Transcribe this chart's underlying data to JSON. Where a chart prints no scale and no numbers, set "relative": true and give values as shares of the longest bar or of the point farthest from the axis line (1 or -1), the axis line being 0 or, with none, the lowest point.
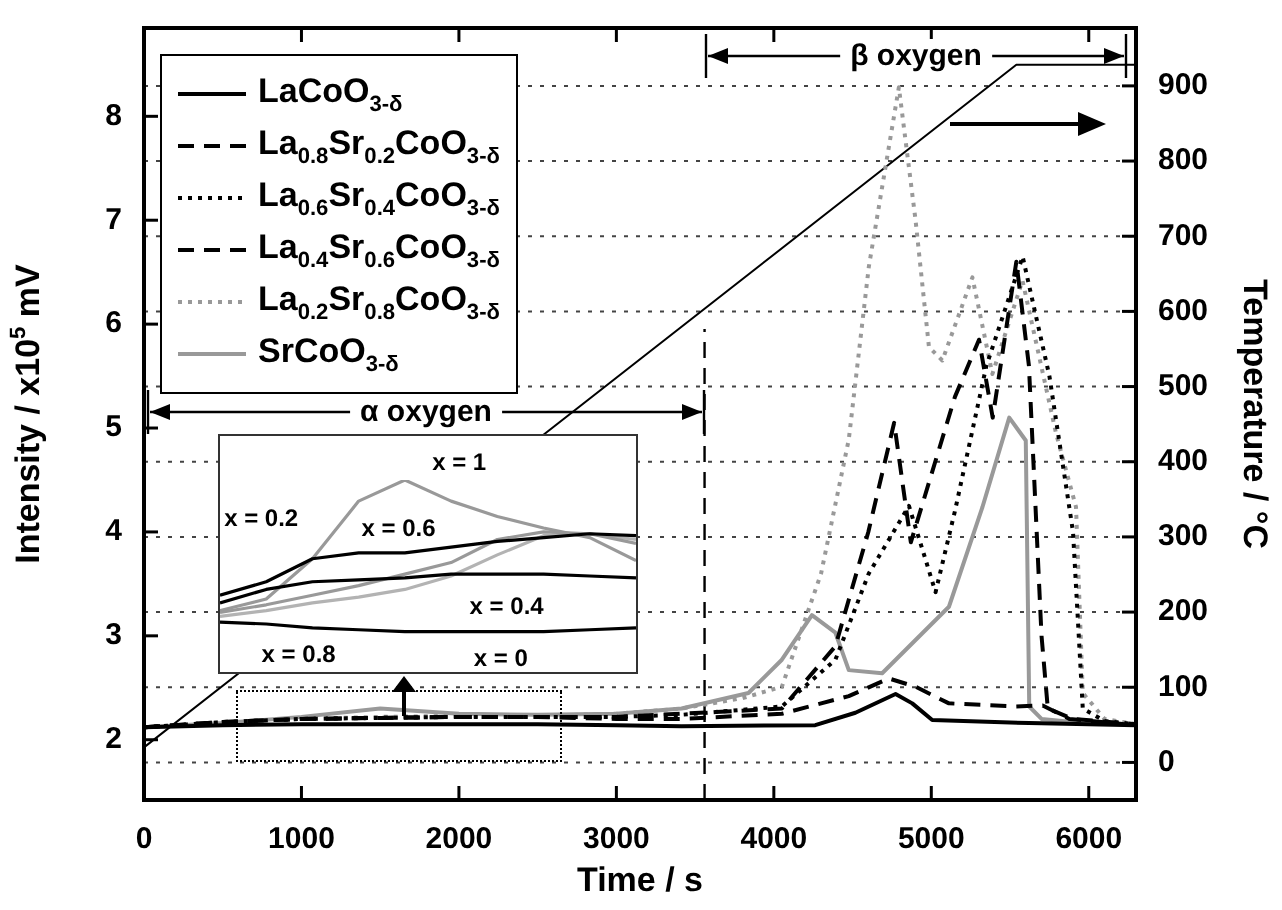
{
  "chart_data": [
    {
      "type": "line",
      "xlabel": "Time / s",
      "ylabel": "Intensity / x10$^{5}$ mV",
      "y2label": "Temperature / °C",
      "xlim": [
        0,
        6300
      ],
      "xticks": [
        0,
        1000,
        2000,
        3000,
        4000,
        5000,
        6000
      ],
      "ylim": [
        1.42,
        8.85
      ],
      "yticks": [
        2,
        3,
        4,
        5,
        6,
        7,
        8
      ],
      "y2lim": [
        -50,
        977
      ],
      "y2ticks": [
        0,
        100,
        200,
        300,
        400,
        500,
        600,
        700,
        800,
        900
      ],
      "grid": "y",
      "legend": "top left",
      "ref_lines": [
        {
          "axis": "x",
          "value": 3560,
          "line_style": "dashed",
          "color": "#000000"
        }
      ],
      "annotations": [
        "α oxygen",
        "β oxygen"
      ],
      "series": [
        {
          "name": "LaCoO$_{3-δ}$",
          "color": "#000000",
          "line_style": "solid",
          "x": [
            0,
            500,
            1000,
            1500,
            2000,
            2500,
            3000,
            3414,
            4263,
            4518,
            4773,
            4879,
            5006,
            5622,
            6300
          ],
          "values": [
            2.12,
            2.14,
            2.15,
            2.15,
            2.15,
            2.15,
            2.14,
            2.13,
            2.14,
            2.26,
            2.44,
            2.35,
            2.19,
            2.16,
            2.14
          ]
        },
        {
          "name": "La$_{0.8}$Sr$_{0.2}$CoO$_{3-δ}$",
          "color": "#000000",
          "line_style": "dashed",
          "x": [
            0,
            500,
            1000,
            1500,
            2000,
            2500,
            3000,
            3414,
            4051,
            4476,
            4730,
            4900,
            5112,
            5537,
            5707,
            5877,
            6300
          ],
          "values": [
            2.12,
            2.17,
            2.2,
            2.21,
            2.22,
            2.22,
            2.2,
            2.2,
            2.25,
            2.42,
            2.59,
            2.51,
            2.35,
            2.32,
            2.33,
            2.2,
            2.14
          ]
        },
        {
          "name": "La$_{0.6}$Sr$_{0.4}$CoO$_{3-δ}$",
          "color": "#000000",
          "line_style": "dotted",
          "x": [
            0,
            500,
            1000,
            1500,
            2000,
            2500,
            3000,
            3414,
            4051,
            4391,
            4603,
            4858,
            4950,
            5027,
            5150,
            5350,
            5580,
            5750,
            5900,
            5962,
            6100,
            6300
          ],
          "values": [
            2.12,
            2.17,
            2.2,
            2.21,
            2.22,
            2.22,
            2.22,
            2.24,
            2.32,
            2.77,
            3.6,
            4.25,
            3.8,
            3.42,
            4.2,
            5.6,
            6.65,
            5.5,
            4.0,
            2.3,
            2.18,
            2.15
          ]
        },
        {
          "name": "La$_{0.4}$Sr$_{0.6}$CoO$_{3-δ}$",
          "color": "#000000",
          "line_style": "dashed",
          "x": [
            0,
            500,
            1000,
            1500,
            2000,
            2500,
            3000,
            3414,
            4051,
            4391,
            4600,
            4764,
            4870,
            4950,
            5150,
            5303,
            5390,
            5480,
            5540,
            5620,
            5700,
            5740,
            5900,
            6300
          ],
          "values": [
            2.12,
            2.17,
            2.2,
            2.21,
            2.22,
            2.22,
            2.22,
            2.25,
            2.3,
            2.9,
            4.0,
            5.05,
            3.9,
            4.3,
            5.3,
            5.85,
            5.1,
            6.0,
            6.6,
            5.6,
            3.0,
            2.3,
            2.2,
            2.15
          ]
        },
        {
          "name": "La$_{0.2}$Sr$_{0.8}$CoO$_{3-δ}$",
          "color": "#999999",
          "line_style": "dotted",
          "x": [
            0,
            500,
            1000,
            1500,
            2000,
            2500,
            3000,
            3414,
            3800,
            4051,
            4300,
            4476,
            4603,
            4794,
            4900,
            4985,
            5070,
            5261,
            5388,
            5579,
            5792,
            5919,
            5962,
            6100,
            6300
          ],
          "values": [
            2.12,
            2.17,
            2.2,
            2.22,
            2.23,
            2.23,
            2.25,
            2.3,
            2.4,
            2.51,
            3.6,
            4.89,
            6.55,
            8.28,
            7.0,
            5.78,
            5.65,
            6.45,
            5.52,
            6.42,
            4.95,
            4.24,
            2.45,
            2.2,
            2.15
          ]
        },
        {
          "name": "SrCoO$_{3-δ}$",
          "color": "#999999",
          "line_style": "solid",
          "x": [
            0,
            500,
            1000,
            1500,
            2000,
            2500,
            3000,
            3414,
            3839,
            4051,
            4242,
            4391,
            4476,
            4688,
            5112,
            5325,
            5495,
            5600,
            5622,
            5700,
            5962,
            6300
          ],
          "values": [
            2.12,
            2.16,
            2.22,
            2.3,
            2.25,
            2.24,
            2.25,
            2.3,
            2.45,
            2.77,
            3.2,
            3.03,
            2.67,
            2.64,
            3.28,
            4.24,
            5.1,
            4.88,
            2.32,
            2.2,
            2.16,
            2.15
          ]
        },
        {
          "color": "#000000",
          "line_style": "solid",
          "axis": "y2",
          "x": [
            0,
            5540,
            6300
          ],
          "values": [
            20,
            928,
            928
          ]
        }
      ]
    },
    {
      "type": "line",
      "relative": true,
      "tick_labels": false,
      "categories": [
        null,
        null,
        null,
        null,
        null,
        null,
        null,
        null,
        null,
        null
      ],
      "annotations": [
        "x = 1",
        "x = 0.2",
        "x = 0.6",
        "x = 0.4",
        "x = 0.8",
        "x = 0"
      ],
      "series": [
        {
          "color": "#000000",
          "values": [
            0.26,
            0.25,
            0.23,
            0.22,
            0.21,
            0.21,
            0.21,
            0.21,
            0.22,
            0.23
          ]
        },
        {
          "color": "#000000",
          "values": [
            0.4,
            0.47,
            0.59,
            0.62,
            0.62,
            0.65,
            0.68,
            0.7,
            0.72,
            0.71
          ]
        },
        {
          "color": "#000000",
          "values": [
            0.36,
            0.43,
            0.47,
            0.48,
            0.49,
            0.51,
            0.51,
            0.51,
            0.5,
            0.49
          ]
        },
        {
          "color": "#999999",
          "values": [
            0.31,
            0.35,
            0.4,
            0.45,
            0.51,
            0.57,
            0.69,
            0.73,
            0.72,
            0.67
          ]
        },
        {
          "color": "#b3b3b3",
          "values": [
            0.29,
            0.32,
            0.36,
            0.39,
            0.43,
            0.5,
            0.61,
            0.71,
            0.72,
            0.69
          ]
        },
        {
          "color": "#999999",
          "values": [
            0.32,
            0.38,
            0.59,
            0.89,
            1,
            0.89,
            0.81,
            0.75,
            0.7,
            0.58
          ]
        }
      ]
    }
  ]
}
